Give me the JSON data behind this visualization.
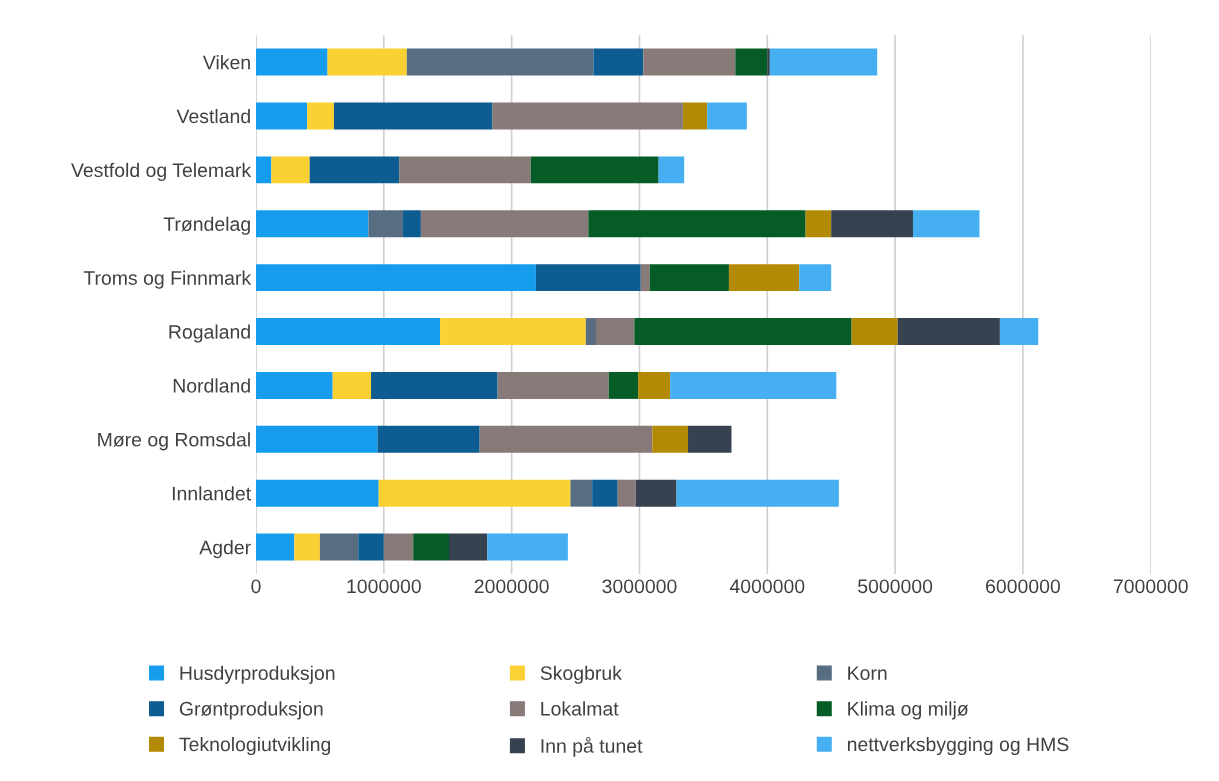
{
  "chart_data": {
    "type": "bar",
    "orientation": "horizontal",
    "stacked": true,
    "categories": [
      "Viken",
      "Vestland",
      "Vestfold og Telemark",
      "Trøndelag",
      "Troms og Finnmark",
      "Rogaland",
      "Nordland",
      "Møre og Romsdal",
      "Innlandet",
      "Agder"
    ],
    "series": [
      {
        "name": "Husdyrproduksjon",
        "color": "#169ced",
        "values": [
          560000,
          400000,
          120000,
          880000,
          2190000,
          1440000,
          600000,
          950000,
          960000,
          300000
        ]
      },
      {
        "name": "Skogbruk",
        "color": "#fbd033",
        "values": [
          620000,
          210000,
          300000,
          0,
          0,
          1140000,
          300000,
          0,
          1500000,
          200000
        ]
      },
      {
        "name": "Korn",
        "color": "#596d82",
        "values": [
          1460000,
          0,
          0,
          270000,
          0,
          80000,
          0,
          0,
          170000,
          300000
        ]
      },
      {
        "name": "Grøntproduksjon",
        "color": "#0d5d93",
        "values": [
          390000,
          1240000,
          700000,
          140000,
          820000,
          0,
          990000,
          800000,
          200000,
          200000
        ]
      },
      {
        "name": "Lokalmat",
        "color": "#877a79",
        "values": [
          720000,
          1490000,
          1030000,
          1310000,
          70000,
          300000,
          870000,
          1350000,
          140000,
          230000
        ]
      },
      {
        "name": "Klima og miljø",
        "color": "#065c27",
        "values": [
          250000,
          0,
          1000000,
          1700000,
          620000,
          1700000,
          230000,
          0,
          0,
          280000
        ]
      },
      {
        "name": "Teknologiutvikling",
        "color": "#b38a03",
        "values": [
          0,
          190000,
          0,
          200000,
          550000,
          360000,
          250000,
          280000,
          0,
          0
        ]
      },
      {
        "name": "Inn på tunet",
        "color": "#36424f",
        "values": [
          20000,
          0,
          0,
          640000,
          0,
          800000,
          0,
          340000,
          320000,
          300000
        ]
      },
      {
        "name": "nettverksbygging og HMS",
        "color": "#46aff1",
        "values": [
          840000,
          310000,
          200000,
          520000,
          250000,
          300000,
          1300000,
          0,
          1270000,
          630000
        ]
      }
    ],
    "xlim": [
      0,
      7000000
    ],
    "xticks": [
      0,
      1000000,
      2000000,
      3000000,
      4000000,
      5000000,
      6000000,
      7000000
    ],
    "grid": "x",
    "legend": "bottom"
  }
}
